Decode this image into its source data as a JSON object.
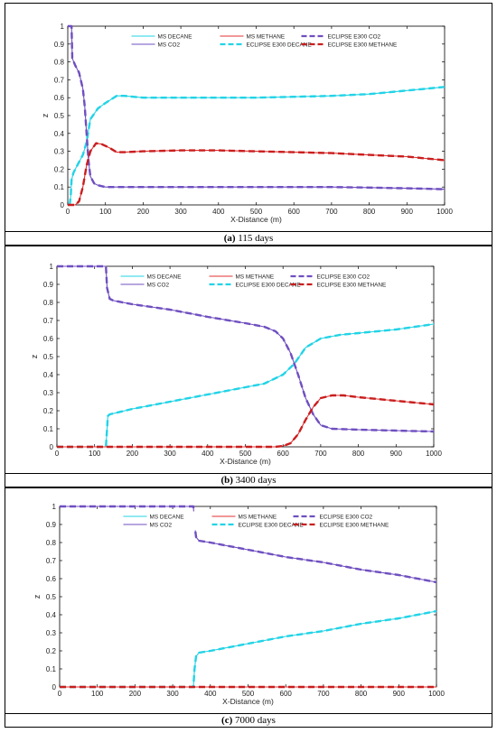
{
  "chart_data": [
    {
      "type": "line",
      "caption_letter": "(a)",
      "caption_text": "115 days",
      "xlabel": "X-Distance (m)",
      "ylabel": "z",
      "xlim": [
        0,
        1000
      ],
      "ylim": [
        0,
        1
      ],
      "xticks": [
        0,
        100,
        200,
        300,
        400,
        500,
        600,
        700,
        800,
        900,
        1000
      ],
      "yticks": [
        0,
        0.1,
        0.2,
        0.3,
        0.4,
        0.5,
        0.6,
        0.7,
        0.8,
        0.9,
        1
      ],
      "legend": "top-center",
      "series": [
        {
          "name": "MS DECANE",
          "color": "#22d3e6",
          "dash": "solid",
          "x": [
            5,
            8,
            10,
            15,
            20,
            30,
            40,
            50,
            60,
            80,
            100,
            130,
            150,
            200,
            300,
            400,
            500,
            600,
            700,
            800,
            900,
            1000
          ],
          "y": [
            0,
            0.05,
            0.14,
            0.18,
            0.2,
            0.24,
            0.28,
            0.35,
            0.48,
            0.54,
            0.57,
            0.61,
            0.61,
            0.6,
            0.6,
            0.6,
            0.6,
            0.605,
            0.61,
            0.62,
            0.64,
            0.66
          ]
        },
        {
          "name": "MS METHANE",
          "color": "#e03030",
          "dash": "solid",
          "x": [
            0,
            20,
            30,
            40,
            50,
            60,
            75,
            90,
            110,
            130,
            150,
            200,
            300,
            400,
            500,
            600,
            700,
            800,
            900,
            1000
          ],
          "y": [
            0,
            0,
            0.02,
            0.1,
            0.22,
            0.3,
            0.345,
            0.34,
            0.32,
            0.295,
            0.295,
            0.3,
            0.305,
            0.305,
            0.3,
            0.295,
            0.29,
            0.28,
            0.27,
            0.25
          ]
        },
        {
          "name": "MS CO2",
          "color": "#6f4fc0",
          "dash": "solid",
          "x": [
            0,
            5,
            10,
            12,
            20,
            30,
            40,
            45,
            50,
            55,
            60,
            70,
            80,
            100,
            200,
            300,
            400,
            500,
            600,
            700,
            800,
            900,
            1000
          ],
          "y": [
            1,
            1,
            1,
            0.82,
            0.78,
            0.74,
            0.65,
            0.55,
            0.4,
            0.25,
            0.16,
            0.12,
            0.11,
            0.1,
            0.1,
            0.1,
            0.1,
            0.1,
            0.1,
            0.1,
            0.097,
            0.093,
            0.088
          ]
        },
        {
          "name": "ECLIPSE E300 DECANE",
          "color": "#22d3e6",
          "dash": "dash",
          "x": [
            5,
            8,
            10,
            15,
            20,
            30,
            40,
            50,
            60,
            80,
            100,
            130,
            150,
            200,
            300,
            400,
            500,
            600,
            700,
            800,
            900,
            1000
          ],
          "y": [
            0,
            0.05,
            0.14,
            0.18,
            0.2,
            0.24,
            0.28,
            0.35,
            0.48,
            0.54,
            0.57,
            0.61,
            0.61,
            0.6,
            0.6,
            0.6,
            0.6,
            0.605,
            0.61,
            0.62,
            0.64,
            0.66
          ]
        },
        {
          "name": "ECLIPSE E300 CO2",
          "color": "#6f4fc0",
          "dash": "dash",
          "x": [
            0,
            5,
            10,
            12,
            20,
            30,
            40,
            45,
            50,
            55,
            60,
            70,
            80,
            100,
            200,
            300,
            400,
            500,
            600,
            700,
            800,
            900,
            1000
          ],
          "y": [
            1,
            1,
            1,
            0.82,
            0.78,
            0.74,
            0.65,
            0.55,
            0.4,
            0.25,
            0.16,
            0.12,
            0.11,
            0.1,
            0.1,
            0.1,
            0.1,
            0.1,
            0.1,
            0.1,
            0.097,
            0.093,
            0.088
          ]
        },
        {
          "name": "ECLIPSE E300 METHANE",
          "color": "#c81e1e",
          "dash": "dash",
          "x": [
            0,
            20,
            30,
            40,
            50,
            60,
            75,
            90,
            110,
            130,
            150,
            200,
            300,
            400,
            500,
            600,
            700,
            800,
            900,
            1000
          ],
          "y": [
            0,
            0,
            0.02,
            0.1,
            0.22,
            0.3,
            0.345,
            0.34,
            0.32,
            0.295,
            0.295,
            0.3,
            0.305,
            0.305,
            0.3,
            0.295,
            0.29,
            0.28,
            0.27,
            0.25
          ]
        }
      ]
    },
    {
      "type": "line",
      "caption_letter": "(b)",
      "caption_text": "3400 days",
      "xlabel": "X-Distance (m)",
      "ylabel": "z",
      "xlim": [
        0,
        1000
      ],
      "ylim": [
        0,
        1
      ],
      "xticks": [
        0,
        100,
        200,
        300,
        400,
        500,
        600,
        700,
        800,
        900,
        1000
      ],
      "yticks": [
        0,
        0.1,
        0.2,
        0.3,
        0.4,
        0.5,
        0.6,
        0.7,
        0.8,
        0.9,
        1
      ],
      "legend": "top-center",
      "series": [
        {
          "name": "MS DECANE",
          "color": "#22d3e6",
          "dash": "solid",
          "x": [
            0,
            130,
            133,
            135,
            140,
            200,
            300,
            400,
            500,
            550,
            600,
            630,
            660,
            700,
            750,
            800,
            900,
            1000
          ],
          "y": [
            0,
            0,
            0.1,
            0.17,
            0.18,
            0.21,
            0.25,
            0.29,
            0.33,
            0.35,
            0.4,
            0.46,
            0.55,
            0.6,
            0.62,
            0.63,
            0.65,
            0.68
          ]
        },
        {
          "name": "MS METHANE",
          "color": "#e03030",
          "dash": "solid",
          "x": [
            0,
            580,
            600,
            620,
            640,
            660,
            680,
            700,
            730,
            760,
            800,
            900,
            1000
          ],
          "y": [
            0,
            0,
            0.005,
            0.02,
            0.07,
            0.15,
            0.22,
            0.27,
            0.285,
            0.285,
            0.275,
            0.255,
            0.235
          ]
        },
        {
          "name": "MS CO2",
          "color": "#6f4fc0",
          "dash": "solid",
          "x": [
            0,
            130,
            133,
            140,
            150,
            200,
            300,
            400,
            500,
            550,
            580,
            600,
            620,
            640,
            660,
            680,
            700,
            730,
            800,
            900,
            1000
          ],
          "y": [
            1,
            1,
            0.88,
            0.82,
            0.81,
            0.79,
            0.76,
            0.72,
            0.685,
            0.665,
            0.64,
            0.6,
            0.52,
            0.4,
            0.27,
            0.18,
            0.12,
            0.1,
            0.095,
            0.09,
            0.085
          ]
        },
        {
          "name": "ECLIPSE E300 DECANE",
          "color": "#22d3e6",
          "dash": "dash",
          "x": [
            0,
            130,
            133,
            135,
            140,
            200,
            300,
            400,
            500,
            550,
            600,
            630,
            660,
            700,
            750,
            800,
            900,
            1000
          ],
          "y": [
            0,
            0,
            0.1,
            0.17,
            0.18,
            0.21,
            0.25,
            0.29,
            0.33,
            0.35,
            0.4,
            0.46,
            0.55,
            0.6,
            0.62,
            0.63,
            0.65,
            0.68
          ]
        },
        {
          "name": "ECLIPSE E300 CO2",
          "color": "#6f4fc0",
          "dash": "dash",
          "x": [
            0,
            130,
            133,
            140,
            150,
            200,
            300,
            400,
            500,
            550,
            580,
            600,
            620,
            640,
            660,
            680,
            700,
            730,
            800,
            900,
            1000
          ],
          "y": [
            1,
            1,
            0.88,
            0.82,
            0.81,
            0.79,
            0.76,
            0.72,
            0.685,
            0.665,
            0.64,
            0.6,
            0.52,
            0.4,
            0.27,
            0.18,
            0.12,
            0.1,
            0.095,
            0.09,
            0.085
          ]
        },
        {
          "name": "ECLIPSE E300 METHANE",
          "color": "#c81e1e",
          "dash": "dash",
          "x": [
            0,
            580,
            600,
            620,
            640,
            660,
            680,
            700,
            730,
            760,
            800,
            900,
            1000
          ],
          "y": [
            0,
            0,
            0.005,
            0.02,
            0.07,
            0.15,
            0.22,
            0.27,
            0.285,
            0.285,
            0.275,
            0.255,
            0.235
          ]
        }
      ]
    },
    {
      "type": "line",
      "caption_letter": "(c)",
      "caption_text": "7000 days",
      "xlabel": "X-Distance (m)",
      "ylabel": "z",
      "xlim": [
        0,
        1000
      ],
      "ylim": [
        0,
        1
      ],
      "xticks": [
        0,
        100,
        200,
        300,
        400,
        500,
        600,
        700,
        800,
        900,
        1000
      ],
      "yticks": [
        0,
        0.1,
        0.2,
        0.3,
        0.4,
        0.5,
        0.6,
        0.7,
        0.8,
        0.9,
        1
      ],
      "legend": "top-center",
      "series": [
        {
          "name": "MS DECANE",
          "color": "#22d3e6",
          "dash": "solid",
          "x": [
            0,
            355,
            358,
            362,
            370,
            400,
            500,
            600,
            700,
            800,
            900,
            1000
          ],
          "y": [
            0,
            0,
            0.1,
            0.17,
            0.19,
            0.2,
            0.24,
            0.28,
            0.31,
            0.35,
            0.38,
            0.42
          ]
        },
        {
          "name": "MS METHANE",
          "color": "#e03030",
          "dash": "solid",
          "x": [
            0,
            1000
          ],
          "y": [
            0,
            0
          ]
        },
        {
          "name": "MS CO2",
          "color": "#6f4fc0",
          "dash": "solid",
          "x": [
            0,
            355,
            358,
            362,
            370,
            400,
            500,
            600,
            700,
            800,
            900,
            1000
          ],
          "y": [
            1,
            1,
            0.9,
            0.83,
            0.81,
            0.8,
            0.76,
            0.72,
            0.69,
            0.65,
            0.62,
            0.58
          ]
        },
        {
          "name": "ECLIPSE E300 DECANE",
          "color": "#22d3e6",
          "dash": "dash",
          "x": [
            0,
            355,
            358,
            362,
            370,
            400,
            500,
            600,
            700,
            800,
            900,
            1000
          ],
          "y": [
            0,
            0,
            0.1,
            0.17,
            0.19,
            0.2,
            0.24,
            0.28,
            0.31,
            0.35,
            0.38,
            0.42
          ]
        },
        {
          "name": "ECLIPSE E300 CO2",
          "color": "#6f4fc0",
          "dash": "dash",
          "x": [
            0,
            355,
            358,
            362,
            370,
            400,
            500,
            600,
            700,
            800,
            900,
            1000
          ],
          "y": [
            1,
            1,
            0.9,
            0.83,
            0.81,
            0.8,
            0.76,
            0.72,
            0.69,
            0.65,
            0.62,
            0.58
          ]
        },
        {
          "name": "ECLIPSE E300 METHANE",
          "color": "#c81e1e",
          "dash": "dash",
          "x": [
            0,
            1000
          ],
          "y": [
            0,
            0
          ]
        }
      ]
    }
  ]
}
